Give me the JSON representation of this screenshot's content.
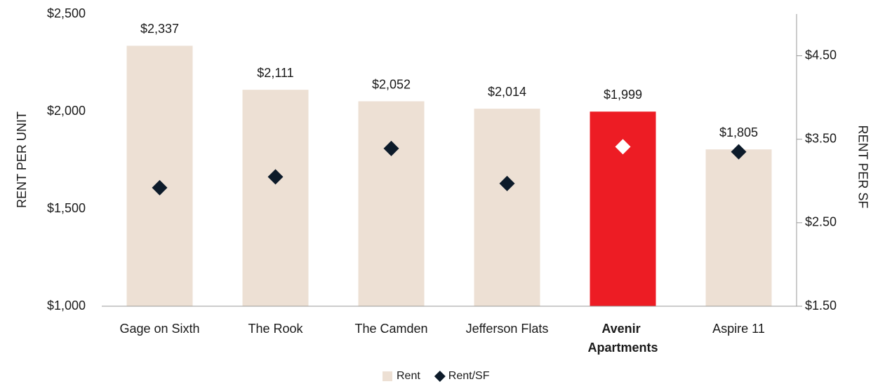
{
  "chart_data": {
    "type": "bar",
    "categories": [
      "Gage on Sixth",
      "The Rook",
      "The Camden",
      "Jefferson Flats",
      "Avenir Apartments",
      "Aspire 11"
    ],
    "highlight": "Avenir Apartments",
    "ylabel": "RENT PER UNIT",
    "y2label": "RENT PER SF",
    "ylim": [
      1000,
      2500
    ],
    "yticks": [
      {
        "value": 1000,
        "label": "$1,000"
      },
      {
        "value": 1500,
        "label": "$1,500"
      },
      {
        "value": 2000,
        "label": "$2,000"
      },
      {
        "value": 2500,
        "label": "$2,500"
      }
    ],
    "y2lim": [
      1.5,
      5.0
    ],
    "y2ticks": [
      {
        "value": 1.5,
        "label": "$1.50"
      },
      {
        "value": 2.5,
        "label": "$2.50"
      },
      {
        "value": 3.5,
        "label": "$3.50"
      },
      {
        "value": 4.5,
        "label": "$4.50"
      }
    ],
    "legend": "bottom",
    "series": [
      {
        "name": "Rent",
        "type": "bar",
        "color": "#ede0d4",
        "colors": [
          "#ede0d4",
          "#ede0d4",
          "#ede0d4",
          "#ede0d4",
          "#ed1c24",
          "#ede0d4"
        ],
        "values": [
          2337,
          2111,
          2052,
          2014,
          1999,
          1805
        ],
        "value_labels": [
          "$2,337",
          "$2,111",
          "$2,052",
          "$2,014",
          "$1,999",
          "$1,805"
        ]
      },
      {
        "name": "Rent/SF",
        "type": "scatter",
        "axis": "y2",
        "color": "#0d1b2a",
        "colors": [
          "#0d1b2a",
          "#0d1b2a",
          "#0d1b2a",
          "#0d1b2a",
          "#ffffff",
          "#0d1b2a"
        ],
        "values": [
          2.92,
          3.05,
          3.39,
          2.97,
          3.41,
          3.35
        ]
      }
    ]
  }
}
